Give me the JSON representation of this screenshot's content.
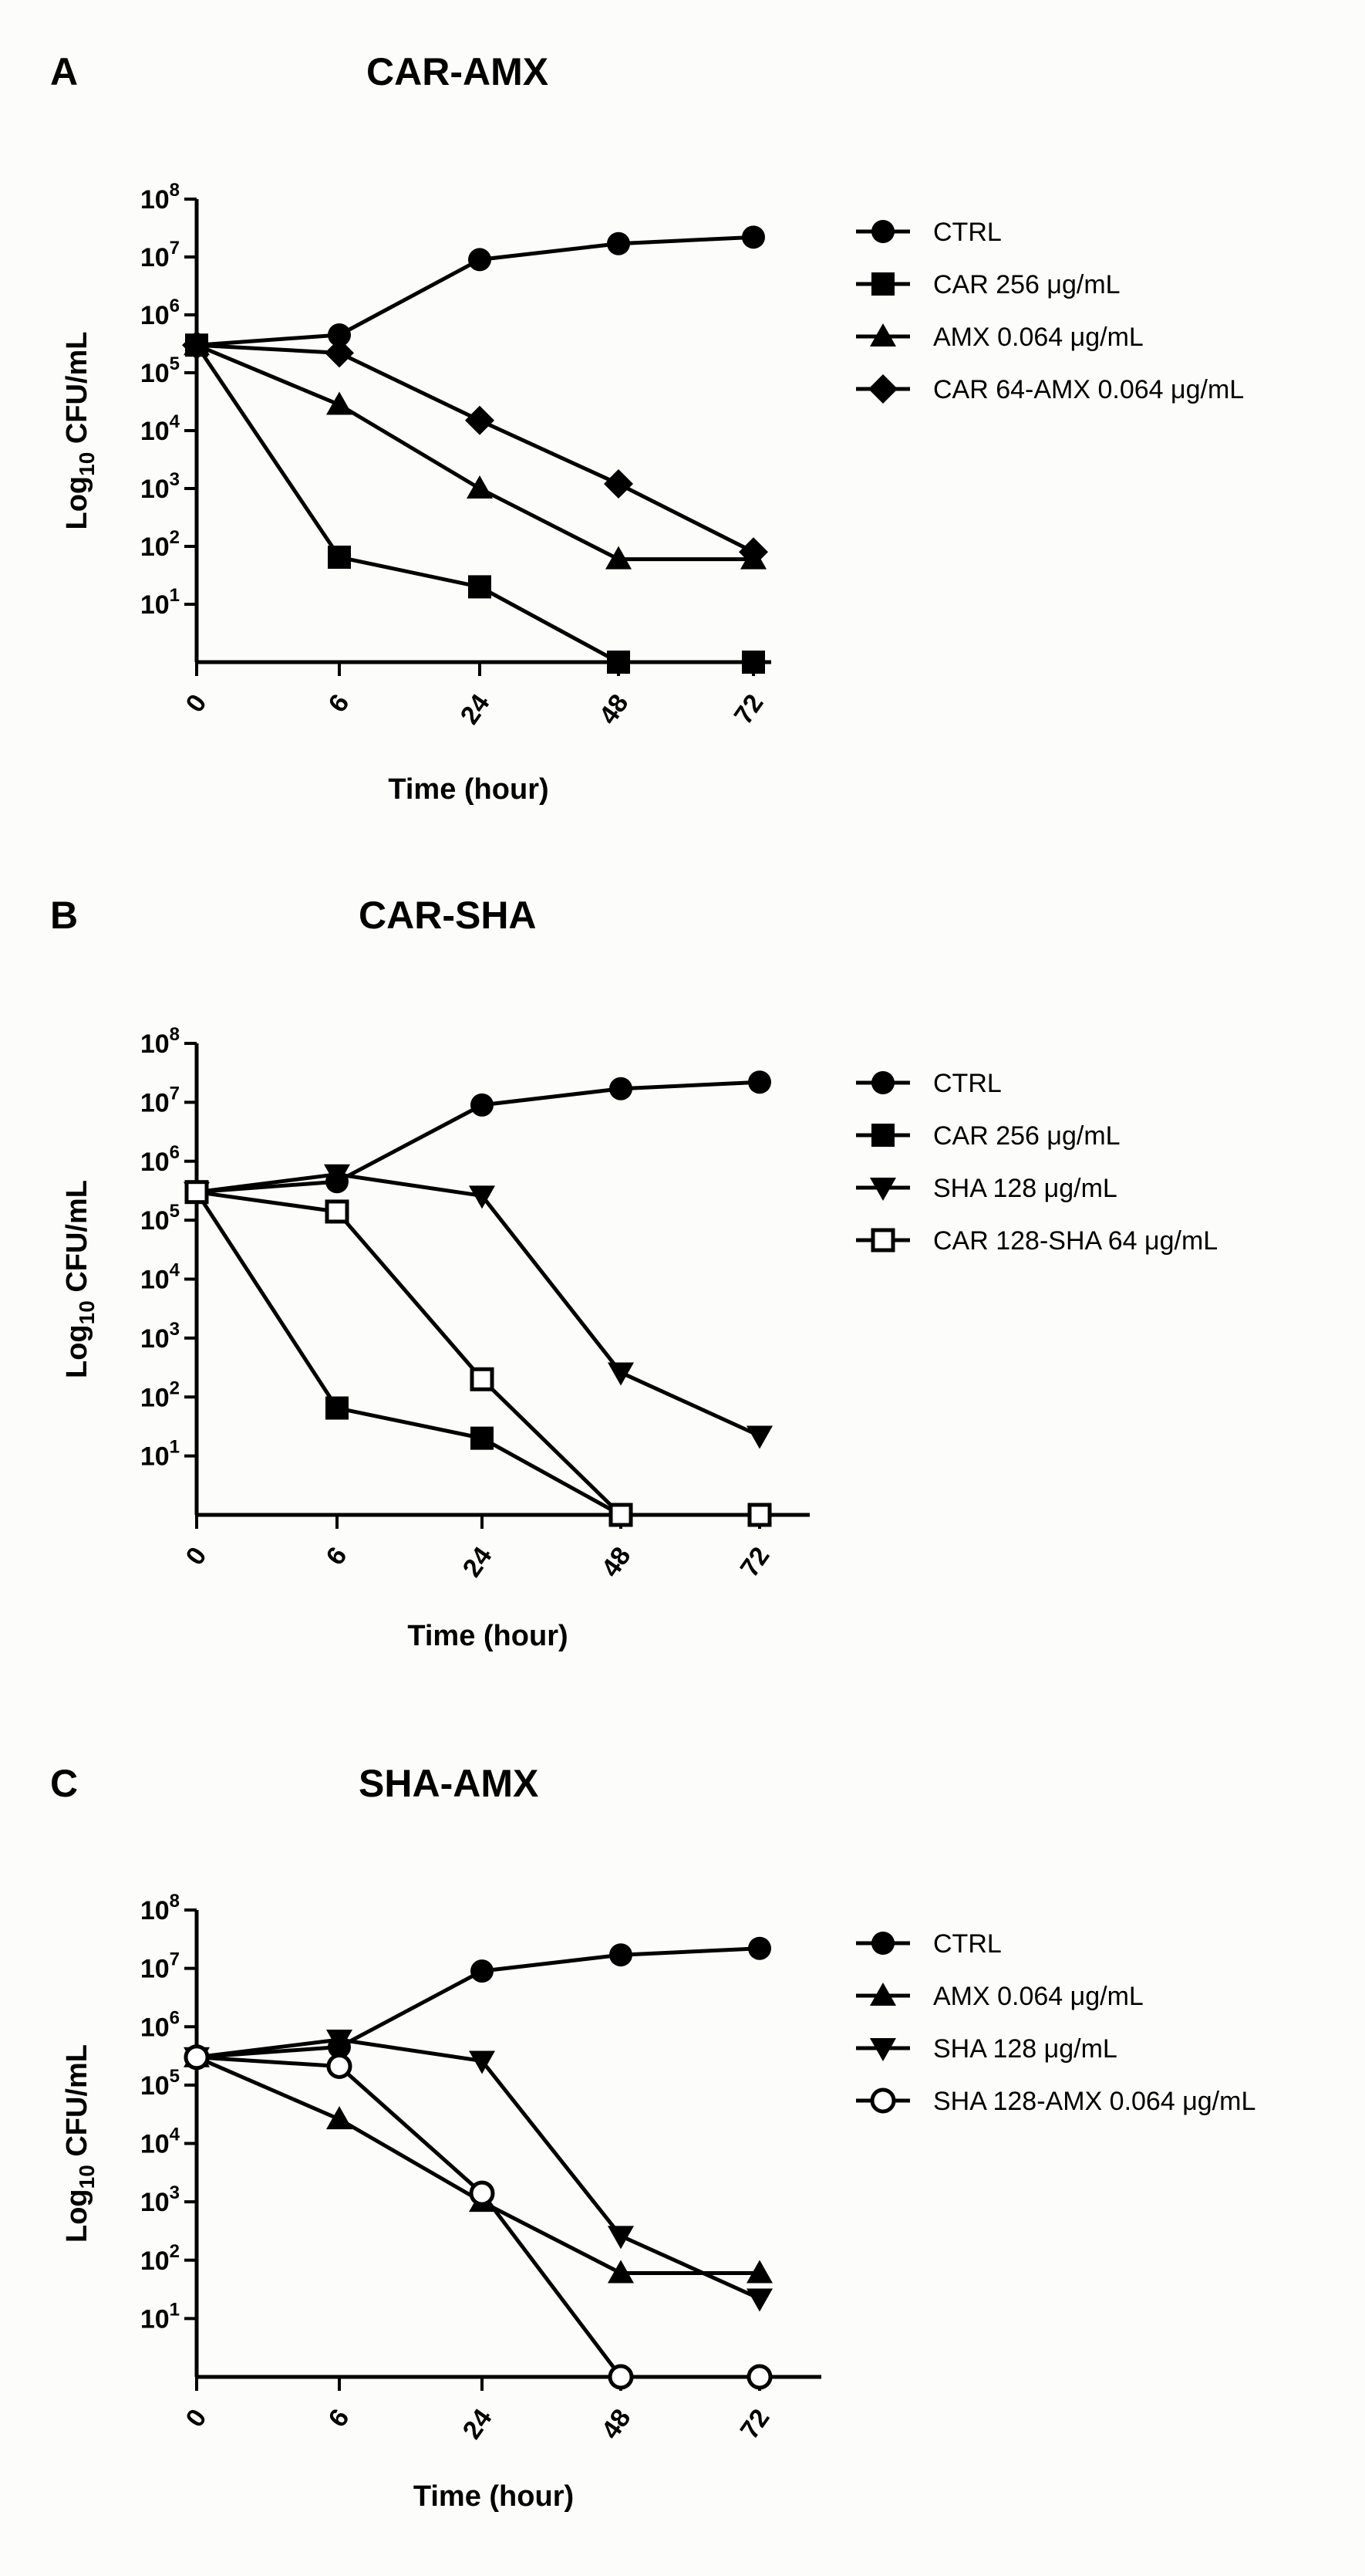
{
  "figure": {
    "panels": [
      {
        "letter": "A",
        "title": "CAR-AMX"
      },
      {
        "letter": "B",
        "title": "CAR-SHA"
      },
      {
        "letter": "C",
        "title": "SHA-AMX"
      }
    ]
  },
  "chart_data": [
    {
      "type": "line",
      "panel": "A",
      "title": "CAR-AMX",
      "xlabel": "Time (hour)",
      "ylabel_base": "Log",
      "ylabel_sub": "10",
      "ylabel_rest": " CFU/mL",
      "categories": [
        "0",
        "6",
        "24",
        "48",
        "72"
      ],
      "y_scale": "log10",
      "ylim": [
        1,
        100000000
      ],
      "y_ticks": [
        {
          "exp": 1,
          "base": "10",
          "sup": "1"
        },
        {
          "exp": 2,
          "base": "10",
          "sup": "2"
        },
        {
          "exp": 3,
          "base": "10",
          "sup": "3"
        },
        {
          "exp": 4,
          "base": "10",
          "sup": "4"
        },
        {
          "exp": 5,
          "base": "10",
          "sup": "5"
        },
        {
          "exp": 6,
          "base": "10",
          "sup": "6"
        },
        {
          "exp": 7,
          "base": "10",
          "sup": "7"
        },
        {
          "exp": 8,
          "base": "10",
          "sup": "8"
        }
      ],
      "legend_position": "right",
      "series": [
        {
          "name": "CTRL",
          "label": "CTRL",
          "unit": "",
          "marker": "circle",
          "values": [
            300000,
            450000,
            9000000,
            17000000,
            22000000
          ]
        },
        {
          "name": "CAR 256 µg/mL",
          "label": "CAR 256 ",
          "unit": "μg/mL",
          "marker": "square",
          "values": [
            300000,
            65,
            20,
            1,
            1
          ]
        },
        {
          "name": "AMX 0.064 µg/mL",
          "label": "AMX 0.064 ",
          "unit": "μg/mL",
          "marker": "triangle-up",
          "values": [
            300000,
            28000,
            1000,
            60,
            60
          ]
        },
        {
          "name": "CAR 64-AMX 0.064 µg/mL",
          "label": "CAR 64-AMX 0.064 ",
          "unit": "μg/mL",
          "marker": "diamond",
          "values": [
            300000,
            220000,
            15000,
            1200,
            80
          ]
        }
      ]
    },
    {
      "type": "line",
      "panel": "B",
      "title": "CAR-SHA",
      "xlabel": "Time (hour)",
      "ylabel_base": "Log",
      "ylabel_sub": "10",
      "ylabel_rest": " CFU/mL",
      "categories": [
        "0",
        "6",
        "24",
        "48",
        "72"
      ],
      "y_scale": "log10",
      "ylim": [
        1,
        100000000
      ],
      "y_ticks": [
        {
          "exp": 1,
          "base": "10",
          "sup": "1"
        },
        {
          "exp": 2,
          "base": "10",
          "sup": "2"
        },
        {
          "exp": 3,
          "base": "10",
          "sup": "3"
        },
        {
          "exp": 4,
          "base": "10",
          "sup": "4"
        },
        {
          "exp": 5,
          "base": "10",
          "sup": "5"
        },
        {
          "exp": 6,
          "base": "10",
          "sup": "6"
        },
        {
          "exp": 7,
          "base": "10",
          "sup": "7"
        },
        {
          "exp": 8,
          "base": "10",
          "sup": "8"
        }
      ],
      "legend_position": "right",
      "series": [
        {
          "name": "CTRL",
          "label": "CTRL",
          "unit": "",
          "marker": "circle",
          "values": [
            300000,
            450000,
            9000000,
            17000000,
            22000000
          ]
        },
        {
          "name": "CAR 256 µg/mL",
          "label": "CAR 256 ",
          "unit": "μg/mL",
          "marker": "square",
          "values": [
            300000,
            65,
            20,
            1,
            1
          ]
        },
        {
          "name": "SHA 128 µg/mL",
          "label": "SHA 128 ",
          "unit": "μg/mL",
          "marker": "triangle-down",
          "values": [
            300000,
            600000,
            260000,
            260,
            22
          ]
        },
        {
          "name": "CAR 128-SHA 64 µg/mL",
          "label": "CAR 128-SHA 64 ",
          "unit": "μg/mL",
          "marker": "square-open",
          "values": [
            300000,
            140000,
            200,
            1,
            1
          ]
        }
      ]
    },
    {
      "type": "line",
      "panel": "C",
      "title": "SHA-AMX",
      "xlabel": "Time (hour)",
      "ylabel_base": "Log",
      "ylabel_sub": "10",
      "ylabel_rest": " CFU/mL",
      "categories": [
        "0",
        "6",
        "24",
        "48",
        "72"
      ],
      "y_scale": "log10",
      "ylim": [
        1,
        100000000
      ],
      "y_ticks": [
        {
          "exp": 1,
          "base": "10",
          "sup": "1"
        },
        {
          "exp": 2,
          "base": "10",
          "sup": "2"
        },
        {
          "exp": 3,
          "base": "10",
          "sup": "3"
        },
        {
          "exp": 4,
          "base": "10",
          "sup": "4"
        },
        {
          "exp": 5,
          "base": "10",
          "sup": "5"
        },
        {
          "exp": 6,
          "base": "10",
          "sup": "6"
        },
        {
          "exp": 7,
          "base": "10",
          "sup": "7"
        },
        {
          "exp": 8,
          "base": "10",
          "sup": "8"
        }
      ],
      "legend_position": "right",
      "series": [
        {
          "name": "CTRL",
          "label": "CTRL",
          "unit": "",
          "marker": "circle",
          "values": [
            300000,
            450000,
            9000000,
            17000000,
            22000000
          ]
        },
        {
          "name": "AMX 0.064 µg/mL",
          "label": "AMX 0.064 ",
          "unit": "μg/mL",
          "marker": "triangle-up",
          "values": [
            300000,
            26000,
            1000,
            60,
            60
          ]
        },
        {
          "name": "SHA 128 µg/mL",
          "label": "SHA 128 ",
          "unit": "μg/mL",
          "marker": "triangle-down",
          "values": [
            300000,
            600000,
            260000,
            260,
            22
          ]
        },
        {
          "name": "SHA 128-AMX 0.064 µg/mL",
          "label": "SHA 128-AMX 0.064 ",
          "unit": "μg/mL",
          "marker": "circle-open",
          "values": [
            300000,
            210000,
            1400,
            1,
            1
          ]
        }
      ]
    }
  ]
}
